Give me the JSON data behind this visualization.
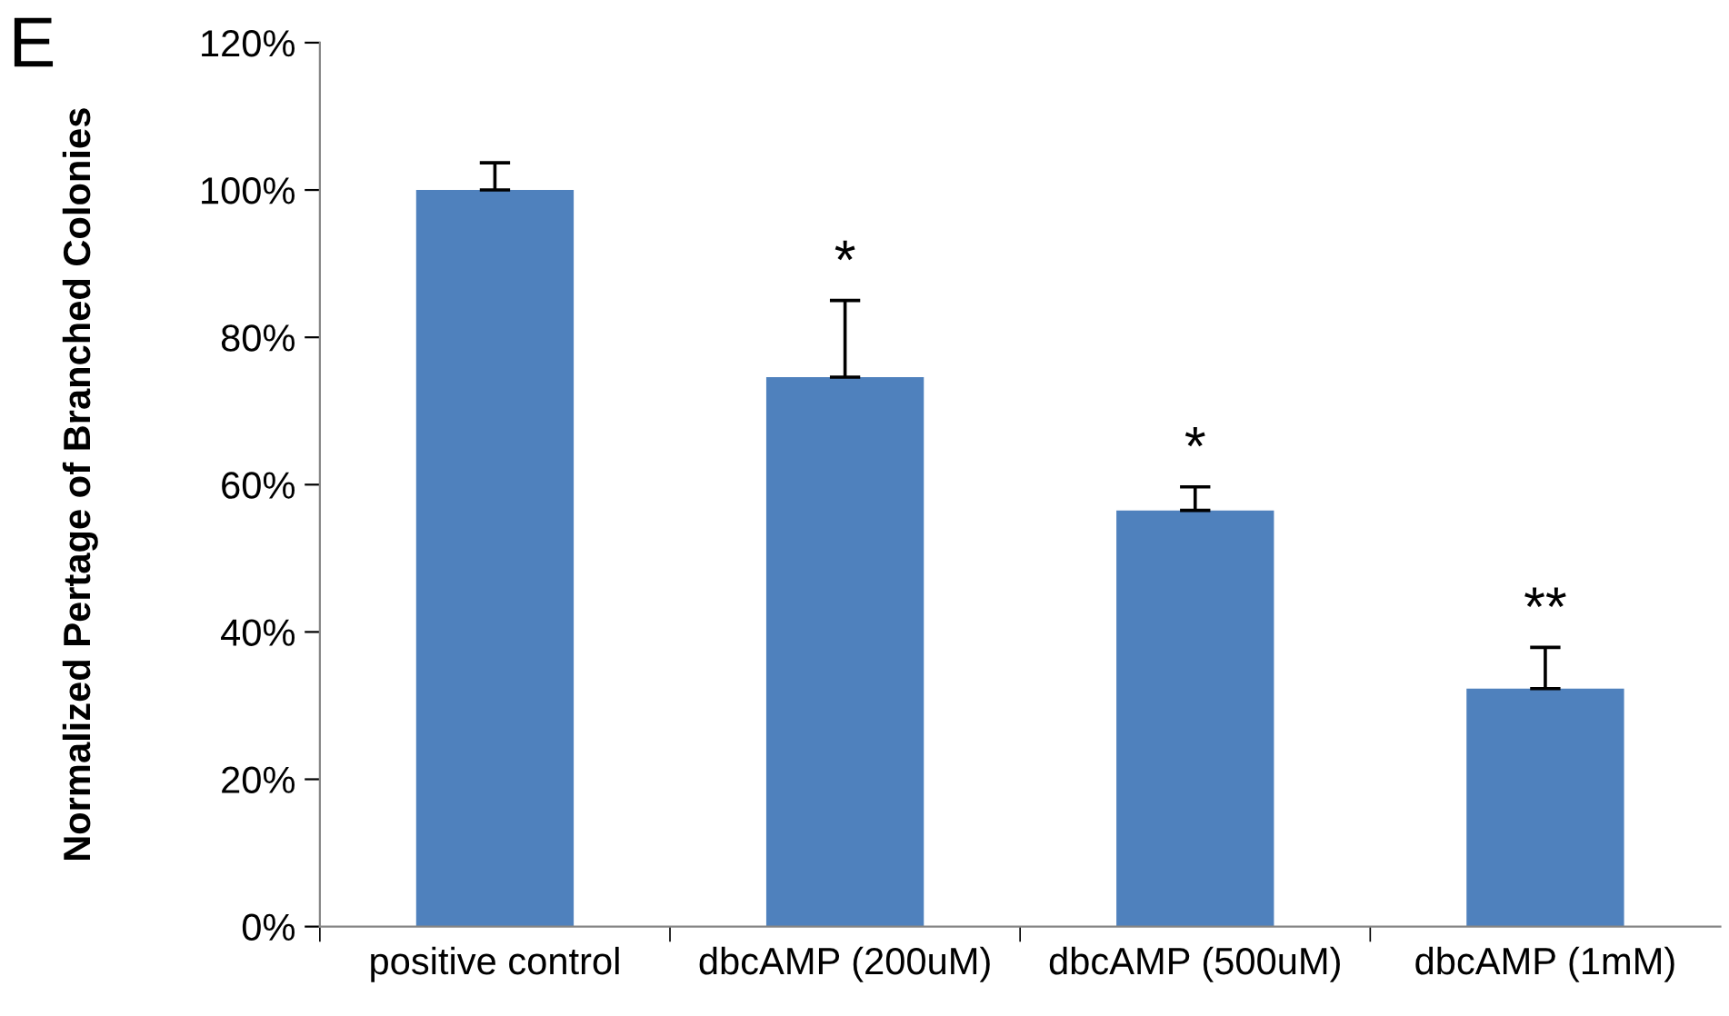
{
  "chart_data": {
    "type": "bar",
    "ylabel": "Normalized Pertage of Branched Colonies",
    "categories": [
      "positive control",
      "dbcAMP (200uM)",
      "dbcAMP (500uM)",
      "dbcAMP (1mM)"
    ],
    "series": [
      {
        "color": "#4f81bd",
        "values": [
          100,
          74.6,
          56.5,
          32.3
        ],
        "errors": [
          [
            100,
            103.7
          ],
          [
            74.6,
            85
          ],
          [
            56.5,
            59.7
          ],
          [
            32.3,
            37.9
          ]
        ]
      }
    ],
    "ylim": [
      0,
      120
    ],
    "yticks": [
      {
        "value": 0,
        "label": "0%"
      },
      {
        "value": 20,
        "label": "20%"
      },
      {
        "value": 40,
        "label": "40%"
      },
      {
        "value": 60,
        "label": "60%"
      },
      {
        "value": 80,
        "label": "80%"
      },
      {
        "value": 100,
        "label": "100%"
      },
      {
        "value": 120,
        "label": "120%"
      }
    ],
    "grid": false,
    "legend": false,
    "annotations": [
      "E",
      "*",
      "*",
      "**"
    ]
  }
}
